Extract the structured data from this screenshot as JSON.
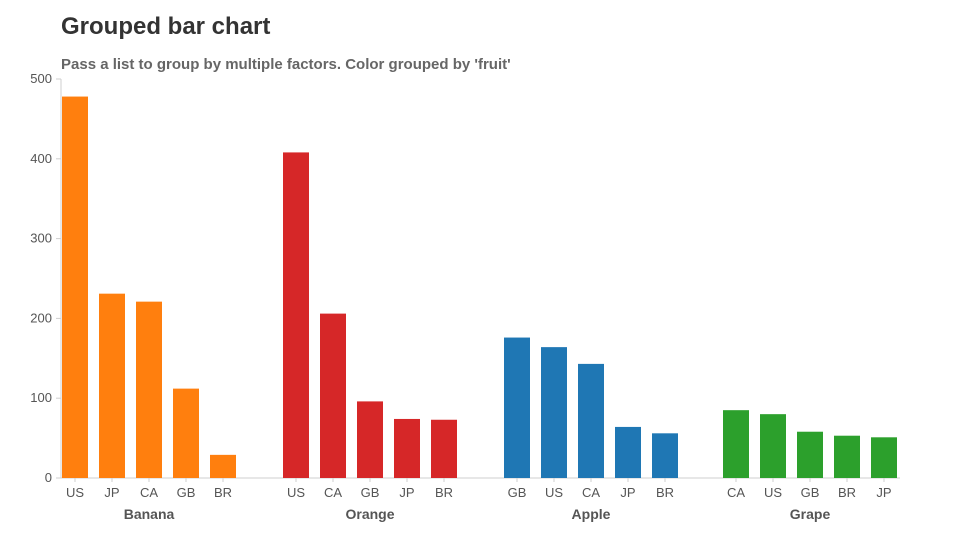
{
  "chart_data": {
    "type": "bar",
    "title": "Grouped bar chart",
    "subtitle": "Pass a list to group by multiple factors. Color grouped by 'fruit'",
    "xlabel": "",
    "ylabel": "",
    "ylim": [
      0,
      500
    ],
    "yticks": [
      0,
      100,
      200,
      300,
      400,
      500
    ],
    "grid": false,
    "groups": [
      {
        "name": "Banana",
        "color": "#ff7f0e",
        "categories": [
          "US",
          "JP",
          "CA",
          "GB",
          "BR"
        ],
        "values": [
          478,
          231,
          221,
          112,
          29
        ]
      },
      {
        "name": "Orange",
        "color": "#d62728",
        "categories": [
          "US",
          "CA",
          "GB",
          "JP",
          "BR"
        ],
        "values": [
          408,
          206,
          96,
          74,
          73
        ]
      },
      {
        "name": "Apple",
        "color": "#1f77b4",
        "categories": [
          "GB",
          "US",
          "CA",
          "JP",
          "BR"
        ],
        "values": [
          176,
          164,
          143,
          64,
          56
        ]
      },
      {
        "name": "Grape",
        "color": "#2ca02c",
        "categories": [
          "CA",
          "US",
          "GB",
          "BR",
          "JP"
        ],
        "values": [
          85,
          80,
          58,
          53,
          51
        ]
      }
    ]
  }
}
